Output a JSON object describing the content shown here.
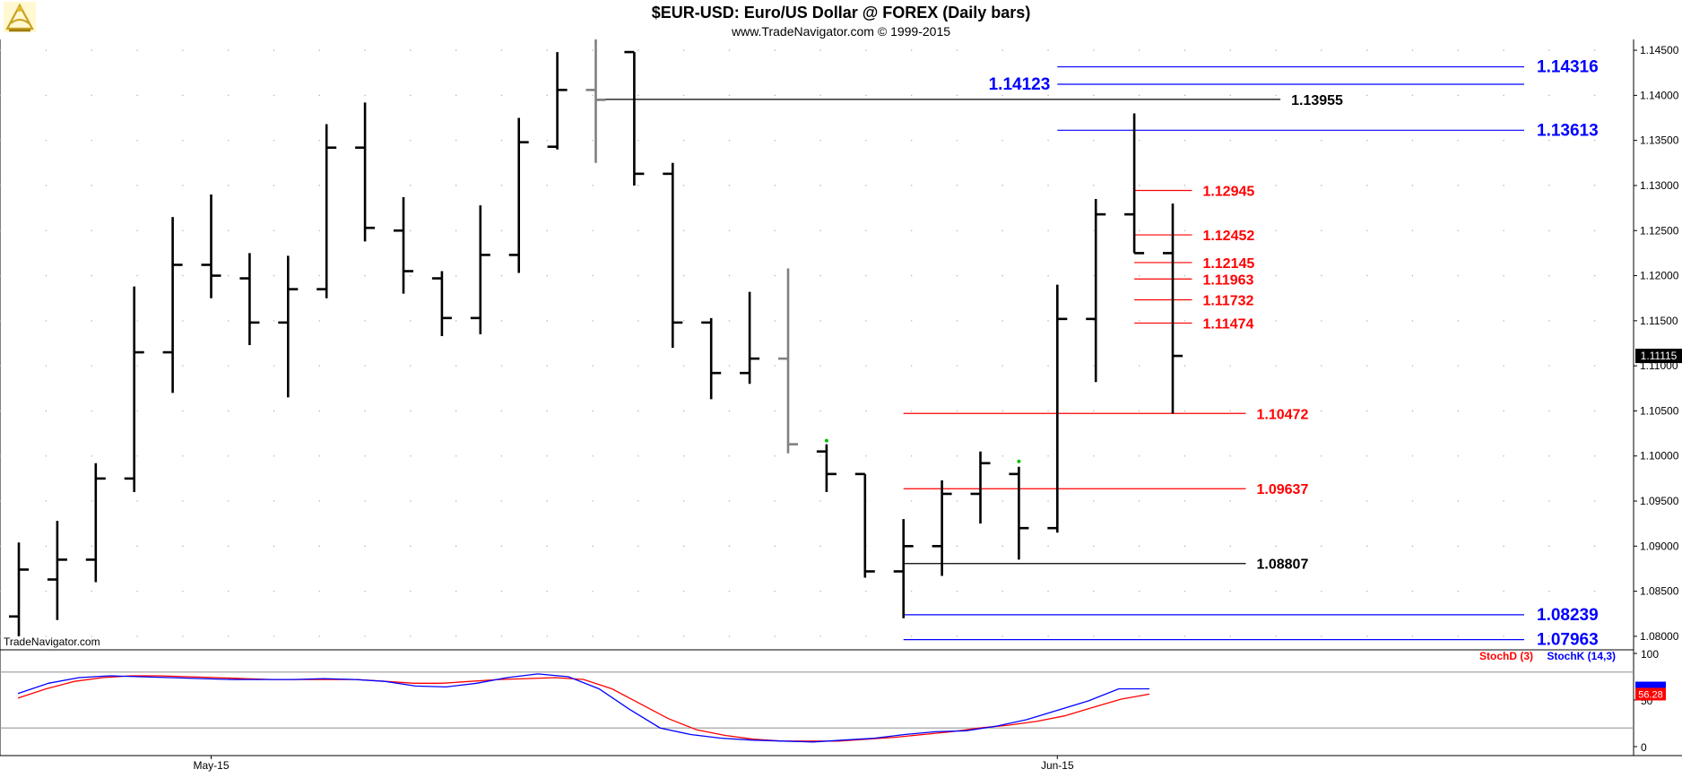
{
  "header": {
    "title": "$EUR-USD:  Euro/US Dollar @ FOREX  (Daily bars)",
    "subtitle": "www.TradeNavigator.com © 1999-2015",
    "watermark": "TradeNavigator.com",
    "logo_icon": "sextant-logo-icon"
  },
  "colors": {
    "background": "#ffffff",
    "bar": "#000000",
    "gray_bar": "#808080",
    "blue": "#0000ff",
    "red": "#ff0000",
    "black": "#000000",
    "grid_dot": "#b4b4b4",
    "stoch_ref": "#9a9a9a"
  },
  "chart_data": [
    {
      "type": "ohlc",
      "title": "$EUR-USD:  Euro/US Dollar @ FOREX  (Daily bars)",
      "ylim": [
        1.0785,
        1.1462
      ],
      "y_ticks": [
        "1.14500",
        "1.14000",
        "1.13500",
        "1.13000",
        "1.12500",
        "1.12000",
        "1.11500",
        "1.11000",
        "1.10500",
        "1.10000",
        "1.09500",
        "1.09000",
        "1.08500",
        "1.08000"
      ],
      "x_tick_labels": [
        {
          "label": "May-15",
          "at_bar": 5
        },
        {
          "label": "Jun-15",
          "at_bar": 27
        }
      ],
      "last_price_label": "1.11115",
      "grid": "dotted",
      "bars": [
        {
          "o": 1.0822,
          "h": 1.0904,
          "l": 1.08,
          "c": 1.0874,
          "color": "black"
        },
        {
          "o": 1.0863,
          "h": 1.0928,
          "l": 1.0818,
          "c": 1.0885,
          "color": "black"
        },
        {
          "o": 1.0885,
          "h": 1.0992,
          "l": 1.086,
          "c": 1.0975,
          "color": "black"
        },
        {
          "o": 1.0975,
          "h": 1.1188,
          "l": 1.096,
          "c": 1.1115,
          "color": "black"
        },
        {
          "o": 1.1115,
          "h": 1.1265,
          "l": 1.107,
          "c": 1.1212,
          "color": "black"
        },
        {
          "o": 1.1212,
          "h": 1.129,
          "l": 1.1175,
          "c": 1.12,
          "color": "black"
        },
        {
          "o": 1.1197,
          "h": 1.1225,
          "l": 1.1123,
          "c": 1.1148,
          "color": "black"
        },
        {
          "o": 1.1148,
          "h": 1.1222,
          "l": 1.1065,
          "c": 1.1185,
          "color": "black"
        },
        {
          "o": 1.1185,
          "h": 1.1368,
          "l": 1.1175,
          "c": 1.1342,
          "color": "black"
        },
        {
          "o": 1.1342,
          "h": 1.1392,
          "l": 1.1238,
          "c": 1.1253,
          "color": "black"
        },
        {
          "o": 1.125,
          "h": 1.1287,
          "l": 1.118,
          "c": 1.1205,
          "color": "black"
        },
        {
          "o": 1.1197,
          "h": 1.1205,
          "l": 1.1133,
          "c": 1.1153,
          "color": "black"
        },
        {
          "o": 1.1153,
          "h": 1.1278,
          "l": 1.1135,
          "c": 1.1223,
          "color": "black"
        },
        {
          "o": 1.1223,
          "h": 1.1375,
          "l": 1.1203,
          "c": 1.1348,
          "color": "black"
        },
        {
          "o": 1.1343,
          "h": 1.1448,
          "l": 1.134,
          "c": 1.1406,
          "color": "black"
        },
        {
          "o": 1.1406,
          "h": 1.1462,
          "l": 1.1325,
          "c": 1.1395,
          "color": "gray"
        },
        {
          "o": 1.1448,
          "h": 1.1448,
          "l": 1.13,
          "c": 1.1313,
          "color": "black"
        },
        {
          "o": 1.1313,
          "h": 1.1325,
          "l": 1.112,
          "c": 1.1148,
          "color": "black"
        },
        {
          "o": 1.1148,
          "h": 1.1153,
          "l": 1.1063,
          "c": 1.1092,
          "color": "black"
        },
        {
          "o": 1.1092,
          "h": 1.1182,
          "l": 1.108,
          "c": 1.1108,
          "color": "black"
        },
        {
          "o": 1.1108,
          "h": 1.1208,
          "l": 1.1003,
          "c": 1.1013,
          "color": "gray"
        },
        {
          "o": 1.1005,
          "h": 1.1013,
          "l": 1.096,
          "c": 1.098,
          "color": "black"
        },
        {
          "o": 1.098,
          "h": 1.098,
          "l": 1.0865,
          "c": 1.0872,
          "color": "black"
        },
        {
          "o": 1.0872,
          "h": 1.093,
          "l": 1.082,
          "c": 1.09,
          "color": "black"
        },
        {
          "o": 1.09,
          "h": 1.0973,
          "l": 1.0867,
          "c": 1.0958,
          "color": "black"
        },
        {
          "o": 1.0958,
          "h": 1.1005,
          "l": 1.0925,
          "c": 1.0992,
          "color": "black"
        },
        {
          "o": 1.098,
          "h": 1.0988,
          "l": 1.0885,
          "c": 1.092,
          "color": "black"
        },
        {
          "o": 1.092,
          "h": 1.119,
          "l": 1.0915,
          "c": 1.1152,
          "color": "black"
        },
        {
          "o": 1.1152,
          "h": 1.1285,
          "l": 1.1082,
          "c": 1.1268,
          "color": "black"
        },
        {
          "o": 1.1268,
          "h": 1.138,
          "l": 1.1225,
          "c": 1.1225,
          "color": "black"
        },
        {
          "o": 1.1225,
          "h": 1.128,
          "l": 1.1047,
          "c": 1.1111,
          "color": "black"
        }
      ],
      "markers": [
        {
          "bar": 21,
          "price": 1.1013,
          "color": "#00c000"
        },
        {
          "bar": 26,
          "price": 1.099,
          "color": "#00c000"
        }
      ],
      "levels": [
        {
          "label": "1.14316",
          "value": 1.14316,
          "color": "blue",
          "from_bar": 27,
          "to_bar": 40,
          "label_side": "right",
          "size": "large"
        },
        {
          "label": "1.14123",
          "value": 1.14123,
          "color": "blue",
          "from_bar": 27,
          "to_bar": 40,
          "label_side": "left",
          "size": "large"
        },
        {
          "label": "1.13955",
          "value": 1.13955,
          "color": "black",
          "from_bar": 15,
          "to_bar": 32.8,
          "label_side": "right",
          "size": "medium"
        },
        {
          "label": "1.13613",
          "value": 1.13613,
          "color": "blue",
          "from_bar": 27,
          "to_bar": 40,
          "label_side": "right",
          "size": "large"
        },
        {
          "label": "1.12945",
          "value": 1.12945,
          "color": "red",
          "from_bar": 29,
          "to_bar": 30.5,
          "label_side": "right",
          "size": "medium"
        },
        {
          "label": "1.12452",
          "value": 1.12452,
          "color": "red",
          "from_bar": 29,
          "to_bar": 30.5,
          "label_side": "right",
          "size": "medium"
        },
        {
          "label": "1.12145",
          "value": 1.12145,
          "color": "red",
          "from_bar": 29,
          "to_bar": 30.5,
          "label_side": "right",
          "size": "medium"
        },
        {
          "label": "1.11963",
          "value": 1.11963,
          "color": "red",
          "from_bar": 29,
          "to_bar": 30.5,
          "label_side": "right",
          "size": "medium"
        },
        {
          "label": "1.11732",
          "value": 1.11732,
          "color": "red",
          "from_bar": 29,
          "to_bar": 30.5,
          "label_side": "right",
          "size": "medium"
        },
        {
          "label": "1.11474",
          "value": 1.11474,
          "color": "red",
          "from_bar": 29,
          "to_bar": 30.5,
          "label_side": "right",
          "size": "medium"
        },
        {
          "label": "1.10472",
          "value": 1.10472,
          "color": "red",
          "from_bar": 23,
          "to_bar": 31.9,
          "label_side": "right",
          "size": "medium"
        },
        {
          "label": "1.09637",
          "value": 1.09637,
          "color": "red",
          "from_bar": 23,
          "to_bar": 31.9,
          "label_side": "right",
          "size": "medium"
        },
        {
          "label": "1.08807",
          "value": 1.08807,
          "color": "black",
          "from_bar": 23,
          "to_bar": 31.9,
          "label_side": "right",
          "size": "medium"
        },
        {
          "label": "1.08239",
          "value": 1.08239,
          "color": "blue",
          "from_bar": 23,
          "to_bar": 40,
          "label_side": "right",
          "size": "large"
        },
        {
          "label": "1.07963",
          "value": 1.07963,
          "color": "blue",
          "from_bar": 23,
          "to_bar": 40,
          "label_side": "right",
          "size": "large"
        }
      ]
    },
    {
      "type": "line",
      "ylim": [
        0,
        100
      ],
      "y_ticks": [
        "100",
        "50",
        "0"
      ],
      "reference_lines": [
        80,
        20
      ],
      "legend": [
        "StochD (3)",
        "StochK (14,3)"
      ],
      "legend_position": "top-right",
      "last_value_labels": [
        "56.28"
      ],
      "series": [
        {
          "name": "StochD (3)",
          "color": "red",
          "values": [
            52,
            62,
            70,
            74,
            76,
            76,
            75,
            74,
            73,
            72,
            72,
            72,
            72,
            70,
            68,
            68,
            70,
            72,
            73,
            74,
            72,
            62,
            46,
            30,
            18,
            12,
            8,
            6,
            6,
            6,
            8,
            10,
            13,
            16,
            20,
            23,
            27,
            33,
            42,
            51,
            56.3
          ]
        },
        {
          "name": "StochK (14,3)",
          "color": "blue",
          "values": [
            57,
            68,
            74,
            76,
            75,
            74,
            73,
            72,
            72,
            72,
            73,
            72,
            70,
            65,
            64,
            68,
            74,
            78,
            75,
            62,
            40,
            20,
            13,
            9,
            7,
            6,
            5,
            7,
            9,
            13,
            16,
            17,
            22,
            29,
            39,
            49,
            62,
            62
          ]
        }
      ]
    }
  ]
}
